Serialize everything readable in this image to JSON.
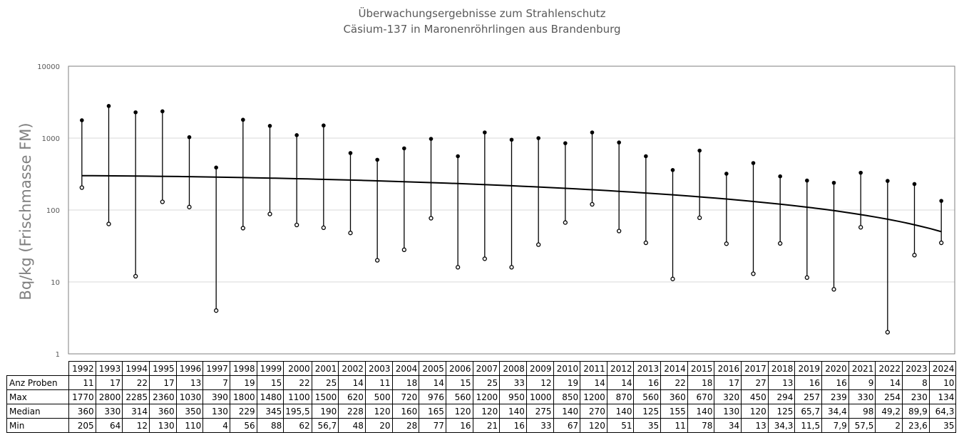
{
  "title": "Überwachungsergebnisse zum Strahlenschutz",
  "subtitle": "Cäsium-137 in Maronenröhrlingen aus Brandenburg",
  "chart_data": {
    "type": "line",
    "title": "Überwachungsergebnisse zum Strahlenschutz",
    "subtitle": "Cäsium-137 in Maronenröhrlingen aus Brandenburg",
    "ylabel": "Bq/kg (Frischmasse FM)",
    "xlabel": "",
    "yscale": "log",
    "ylim": [
      1,
      10000
    ],
    "yticks": [
      "1",
      "10",
      "100",
      "1000",
      "10000"
    ],
    "grid": true,
    "categories": [
      "1992",
      "1993",
      "1994",
      "1995",
      "1996",
      "1997",
      "1998",
      "1999",
      "2000",
      "2001",
      "2002",
      "2003",
      "2004",
      "2005",
      "2006",
      "2007",
      "2008",
      "2009",
      "2010",
      "2011",
      "2012",
      "2013",
      "2014",
      "2015",
      "2016",
      "2017",
      "2018",
      "2019",
      "2020",
      "2021",
      "2022",
      "2023",
      "2024"
    ],
    "series": [
      {
        "name": "Anz Proben",
        "display": [
          "11",
          "17",
          "22",
          "17",
          "13",
          "7",
          "19",
          "15",
          "22",
          "25",
          "14",
          "11",
          "18",
          "14",
          "15",
          "25",
          "33",
          "12",
          "19",
          "14",
          "14",
          "16",
          "22",
          "18",
          "17",
          "27",
          "13",
          "16",
          "16",
          "9",
          "14",
          "8",
          "10"
        ]
      },
      {
        "name": "Max",
        "values": [
          1770,
          2800,
          2285,
          2360,
          1030,
          390,
          1800,
          1480,
          1100,
          1500,
          620,
          500,
          720,
          976,
          560,
          1200,
          950,
          1000,
          850,
          1200,
          870,
          560,
          360,
          670,
          320,
          450,
          294,
          257,
          239,
          330,
          254,
          230,
          134
        ],
        "display": [
          "1770",
          "2800",
          "2285",
          "2360",
          "1030",
          "390",
          "1800",
          "1480",
          "1100",
          "1500",
          "620",
          "500",
          "720",
          "976",
          "560",
          "1200",
          "950",
          "1000",
          "850",
          "1200",
          "870",
          "560",
          "360",
          "670",
          "320",
          "450",
          "294",
          "257",
          "239",
          "330",
          "254",
          "230",
          "134"
        ]
      },
      {
        "name": "Median",
        "display": [
          "360",
          "330",
          "314",
          "360",
          "350",
          "130",
          "229",
          "345",
          "195,5",
          "190",
          "228",
          "120",
          "160",
          "165",
          "120",
          "120",
          "140",
          "275",
          "140",
          "270",
          "140",
          "125",
          "155",
          "140",
          "130",
          "120",
          "125",
          "65,7",
          "34,4",
          "98",
          "49,2",
          "89,9",
          "64,3"
        ]
      },
      {
        "name": "Min",
        "values": [
          205,
          64,
          12,
          130,
          110,
          4,
          56,
          88,
          62,
          56.7,
          48,
          20,
          28,
          77,
          16,
          21,
          16,
          33,
          67,
          120,
          51,
          35,
          11,
          78,
          34,
          13,
          34.3,
          11.5,
          7.9,
          57.5,
          2,
          23.6,
          35
        ],
        "display": [
          "205",
          "64",
          "12",
          "130",
          "110",
          "4",
          "56",
          "88",
          "62",
          "56,7",
          "48",
          "20",
          "28",
          "77",
          "16",
          "21",
          "16",
          "33",
          "67",
          "120",
          "51",
          "35",
          "11",
          "78",
          "34",
          "13",
          "34,3",
          "11,5",
          "7,9",
          "57,5",
          "2",
          "23,6",
          "35"
        ]
      }
    ],
    "trend": {
      "start": 300,
      "end": 50
    },
    "colors": {
      "line": "#000000",
      "grid": "#d9d9d9",
      "border": "#7f7f7f",
      "axis_text": "#595959"
    }
  }
}
